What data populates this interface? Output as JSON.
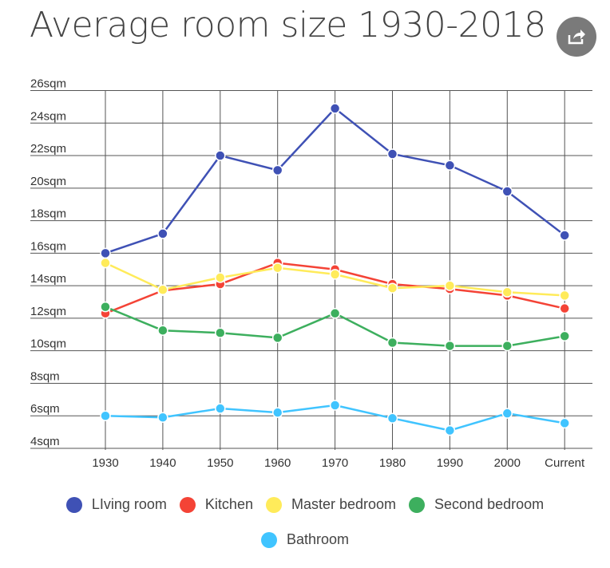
{
  "chart_data": {
    "type": "line",
    "title": "Average room size 1930-2018",
    "categories": [
      "1930",
      "1940",
      "1950",
      "1960",
      "1970",
      "1980",
      "1990",
      "2000",
      "Current"
    ],
    "y_ticks": [
      4,
      6,
      8,
      10,
      12,
      14,
      16,
      18,
      20,
      22,
      24,
      26
    ],
    "y_tick_suffix": "sqm",
    "ylim": [
      4,
      26
    ],
    "grid": true,
    "legend_placement": "bottom",
    "series": [
      {
        "name": "LIving room",
        "color": "#3f51b5",
        "values": [
          16.0,
          17.2,
          22.0,
          21.1,
          24.9,
          22.1,
          21.4,
          19.8,
          17.1
        ]
      },
      {
        "name": "Kitchen",
        "color": "#f44336",
        "values": [
          12.3,
          13.7,
          14.1,
          15.4,
          15.0,
          14.1,
          13.8,
          13.4,
          12.6
        ]
      },
      {
        "name": "Master bedroom",
        "color": "#ffeb5a",
        "values": [
          15.4,
          13.75,
          14.5,
          15.1,
          14.7,
          13.85,
          14.0,
          13.6,
          13.4
        ]
      },
      {
        "name": "Second bedroom",
        "color": "#3daf5e",
        "values": [
          12.7,
          11.25,
          11.1,
          10.8,
          12.3,
          10.5,
          10.3,
          10.3,
          10.9
        ]
      },
      {
        "name": "Bathroom",
        "color": "#40c4ff",
        "values": [
          6.0,
          5.9,
          6.45,
          6.2,
          6.65,
          5.85,
          5.1,
          6.15,
          5.55
        ]
      }
    ]
  },
  "share_icon": "share-icon"
}
